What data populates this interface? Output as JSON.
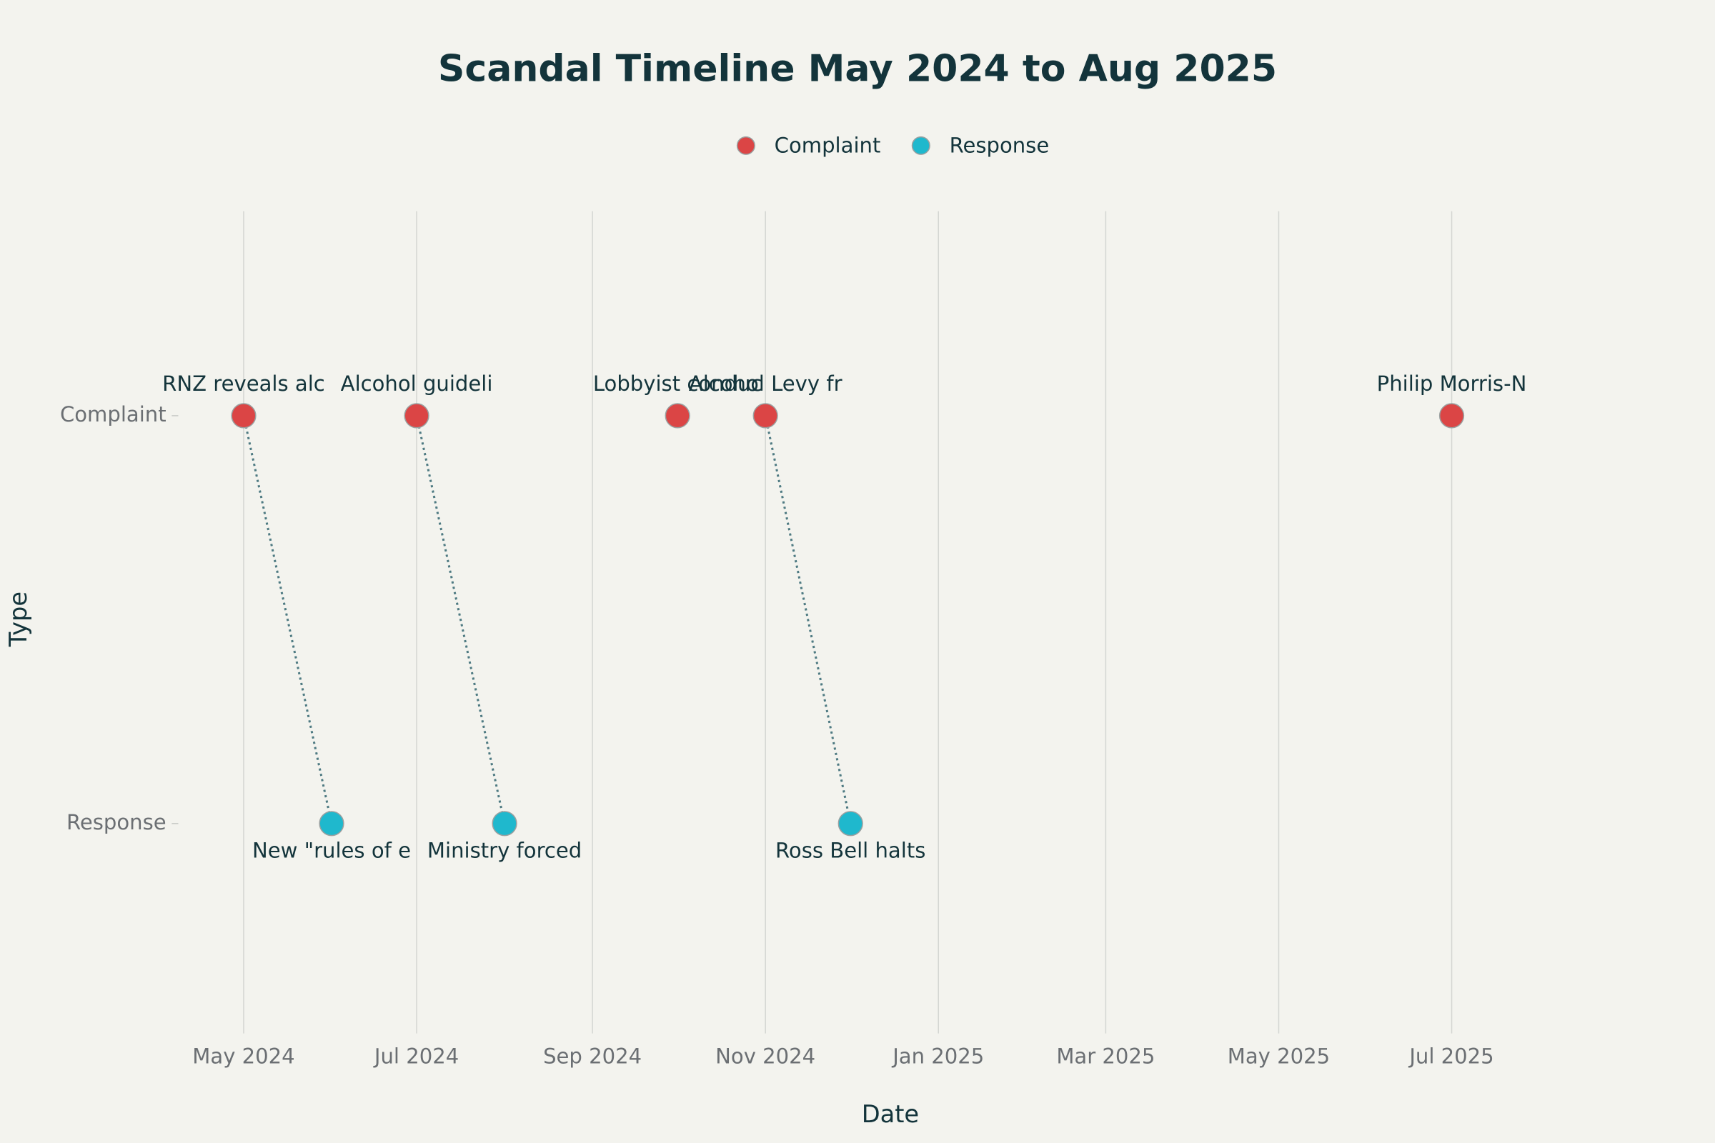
{
  "chart_data": {
    "type": "scatter",
    "title": "Scandal Timeline May 2024 to Aug 2025",
    "xlabel": "Date",
    "ylabel": "Type",
    "xlim": [
      "2024-04",
      "2025-09"
    ],
    "xticks": [
      {
        "value": "2024-05",
        "label": "May 2024"
      },
      {
        "value": "2024-07",
        "label": "Jul 2024"
      },
      {
        "value": "2024-09",
        "label": "Sep 2024"
      },
      {
        "value": "2024-11",
        "label": "Nov 2024"
      },
      {
        "value": "2025-01",
        "label": "Jan 2025"
      },
      {
        "value": "2025-03",
        "label": "Mar 2025"
      },
      {
        "value": "2025-05",
        "label": "May 2025"
      },
      {
        "value": "2025-07",
        "label": "Jul 2025"
      }
    ],
    "y_categories": [
      "Complaint",
      "Response"
    ],
    "grid": true,
    "legend": "top",
    "series": [
      {
        "name": "Complaint",
        "color": "#db4545",
        "x": [
          "2024-05",
          "2024-07",
          "2024-10",
          "2024-11",
          "2025-07"
        ],
        "labels": [
          "RNZ reveals alc",
          "Alcohol guideli",
          "Lobbyist conduc",
          "Alcohol Levy fr",
          "Philip Morris-N"
        ]
      },
      {
        "name": "Response",
        "color": "#1fb8cd",
        "x": [
          "2024-06",
          "2024-08",
          "2024-12"
        ],
        "labels": [
          "New \"rules of e",
          "Ministry forced",
          "Ross Bell halts"
        ]
      }
    ],
    "links": [
      {
        "from": 0,
        "to": 0
      },
      {
        "from": 1,
        "to": 1
      },
      {
        "from": 3,
        "to": 2
      }
    ]
  }
}
